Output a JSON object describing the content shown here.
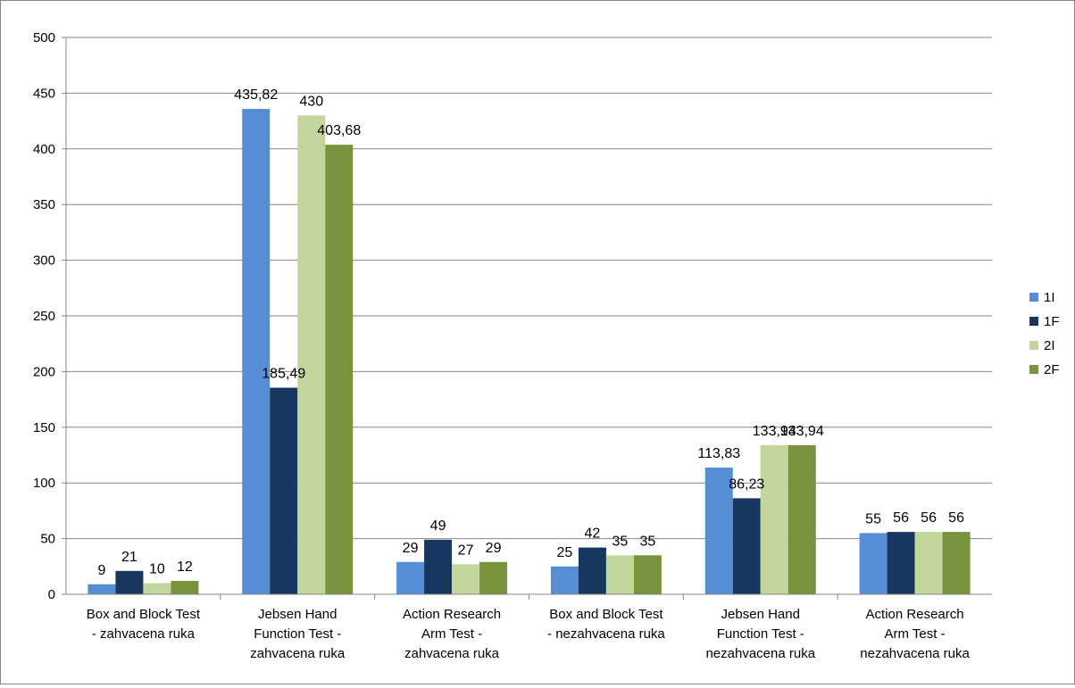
{
  "chart_data": {
    "type": "bar",
    "categories": [
      [
        "Box and Block Test",
        "- zahvacena ruka"
      ],
      [
        "Jebsen Hand",
        "Function Test -",
        "zahvacena ruka"
      ],
      [
        "Action Research",
        "Arm Test -",
        "zahvacena ruka"
      ],
      [
        "Box and Block Test",
        "- nezahvacena ruka"
      ],
      [
        "Jebsen Hand",
        "Function Test -",
        "nezahvacena ruka"
      ],
      [
        "Action Research",
        "Arm Test -",
        "nezahvacena ruka"
      ]
    ],
    "series": [
      {
        "name": "1I",
        "color": "#558ed5",
        "values": [
          9,
          435.82,
          29,
          25,
          113.83,
          55
        ],
        "labels": [
          "9",
          "435,82",
          "29",
          "25",
          "113,83",
          "55"
        ]
      },
      {
        "name": "1F",
        "color": "#17375e",
        "values": [
          21,
          185.49,
          49,
          42,
          86.23,
          56
        ],
        "labels": [
          "21",
          "185,49",
          "49",
          "42",
          "86,23",
          "56"
        ]
      },
      {
        "name": "2I",
        "color": "#c3d69b",
        "values": [
          10,
          430,
          27,
          35,
          133.94,
          56
        ],
        "labels": [
          "10",
          "430",
          "27",
          "35",
          "133,94",
          "56"
        ]
      },
      {
        "name": "2F",
        "color": "#77933c",
        "values": [
          12,
          403.68,
          29,
          35,
          133.94,
          56
        ],
        "labels": [
          "12",
          "403,68",
          "29",
          "35",
          "133,94",
          "56"
        ]
      }
    ],
    "ylim": [
      0,
      500
    ],
    "yticks": [
      0,
      50,
      100,
      150,
      200,
      250,
      300,
      350,
      400,
      450,
      500
    ],
    "grid": true,
    "legend_position": "right",
    "title": "",
    "xlabel": "",
    "ylabel": ""
  }
}
